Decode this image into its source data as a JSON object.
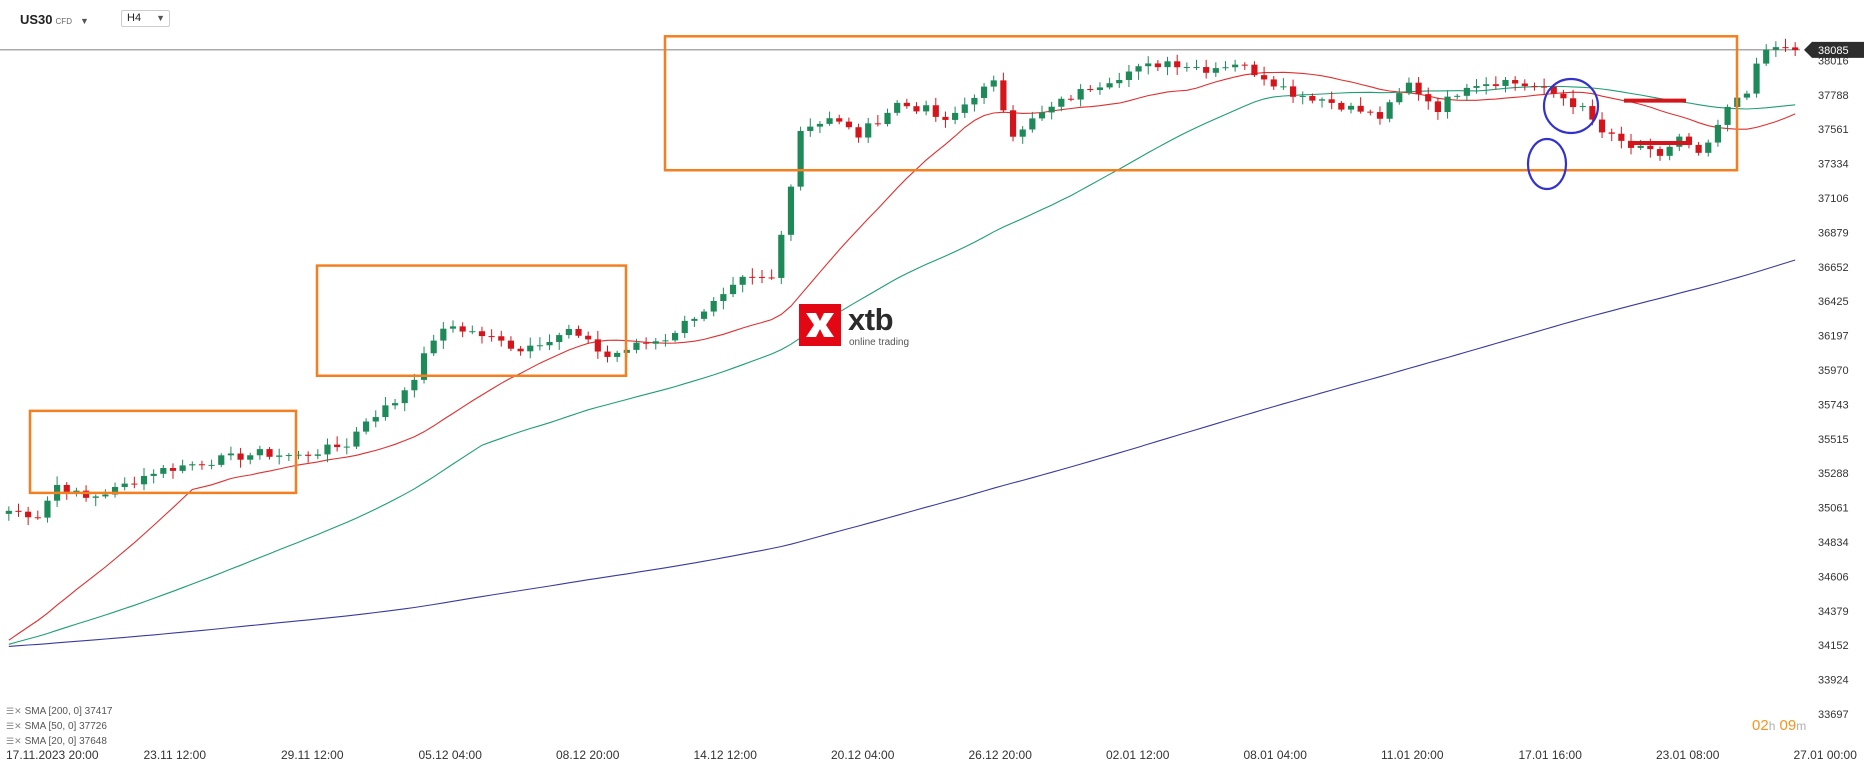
{
  "header": {
    "symbol": "US30",
    "symbol_tag": "CFD",
    "timeframe": "H4"
  },
  "logo": {
    "word": "xtb",
    "sub": "online trading"
  },
  "legend": [
    {
      "label": "SMA [200, 0] 37417",
      "color": "#3a3aa0"
    },
    {
      "label": "SMA [50, 0] 37726",
      "color": "#1e9e74"
    },
    {
      "label": "SMA [20, 0] 37648",
      "color": "#e03030"
    }
  ],
  "countdown": {
    "hours": "02",
    "h_unit": "h",
    "minutes": "09",
    "m_unit": "m"
  },
  "chart_data": {
    "type": "candlestick",
    "instrument": "US30",
    "timeframe": "H4",
    "last_price": 38085,
    "ylim": [
      33697,
      38243
    ],
    "y_ticks": [
      38016,
      37788,
      37561,
      37334,
      37106,
      36879,
      36652,
      36425,
      36197,
      35970,
      35743,
      35515,
      35288,
      35061,
      34834,
      34606,
      34379,
      34152,
      33924,
      33697
    ],
    "x_ticks": [
      "17.11.2023  20:00",
      "23.11  12:00",
      "29.11  12:00",
      "05.12  04:00",
      "08.12  20:00",
      "14.12  12:00",
      "20.12  04:00",
      "26.12  20:00",
      "02.01  12:00",
      "08.01  04:00",
      "11.01  20:00",
      "17.01  16:00",
      "23.01  08:00",
      "27.01  00:00"
    ],
    "colors": {
      "up": "#1e8a5a",
      "down": "#d4161c",
      "sma20": "#e03030",
      "sma50": "#1e9e74",
      "sma200": "#3a3aa0",
      "box": "#f47f20",
      "circle": "#3333cc",
      "level": "#d4161c"
    },
    "price_path": [
      [
        0,
        35040
      ],
      [
        3,
        35010
      ],
      [
        5,
        35210
      ],
      [
        8,
        35120
      ],
      [
        11,
        35180
      ],
      [
        15,
        35300
      ],
      [
        20,
        35360
      ],
      [
        26,
        35420
      ],
      [
        30,
        35400
      ],
      [
        35,
        35480
      ],
      [
        37,
        35640
      ],
      [
        40,
        35760
      ],
      [
        42,
        35930
      ],
      [
        44,
        36180
      ],
      [
        46,
        36260
      ],
      [
        49,
        36200
      ],
      [
        53,
        36110
      ],
      [
        58,
        36230
      ],
      [
        62,
        36060
      ],
      [
        65,
        36130
      ],
      [
        68,
        36180
      ],
      [
        71,
        36330
      ],
      [
        74,
        36450
      ],
      [
        76,
        36560
      ],
      [
        79,
        36570
      ],
      [
        80,
        36860
      ],
      [
        82,
        37560
      ],
      [
        85,
        37640
      ],
      [
        88,
        37520
      ],
      [
        92,
        37730
      ],
      [
        95,
        37690
      ],
      [
        97,
        37600
      ],
      [
        100,
        37790
      ],
      [
        102,
        37860
      ],
      [
        104,
        37540
      ],
      [
        106,
        37620
      ],
      [
        109,
        37740
      ],
      [
        112,
        37840
      ],
      [
        116,
        37940
      ],
      [
        120,
        38010
      ],
      [
        124,
        37960
      ],
      [
        127,
        38000
      ],
      [
        130,
        37910
      ],
      [
        133,
        37800
      ],
      [
        136,
        37760
      ],
      [
        139,
        37700
      ],
      [
        142,
        37640
      ],
      [
        145,
        37860
      ],
      [
        148,
        37700
      ],
      [
        151,
        37860
      ],
      [
        155,
        37880
      ],
      [
        158,
        37840
      ],
      [
        161,
        37770
      ],
      [
        163,
        37690
      ],
      [
        165,
        37540
      ],
      [
        168,
        37440
      ],
      [
        171,
        37390
      ],
      [
        173,
        37500
      ],
      [
        175,
        37380
      ],
      [
        177,
        37560
      ],
      [
        178,
        37700
      ],
      [
        180,
        37800
      ],
      [
        181,
        38020
      ],
      [
        183,
        38100
      ],
      [
        185,
        38085
      ]
    ],
    "ranges": [
      {
        "label": "",
        "price_low": 35158,
        "price_high": 35700
      },
      {
        "label": "",
        "price_low": 35932,
        "price_high": 36660
      },
      {
        "label": "",
        "price_low": 37290,
        "price_high": 38175
      }
    ],
    "levels": [
      37750,
      37470
    ]
  }
}
